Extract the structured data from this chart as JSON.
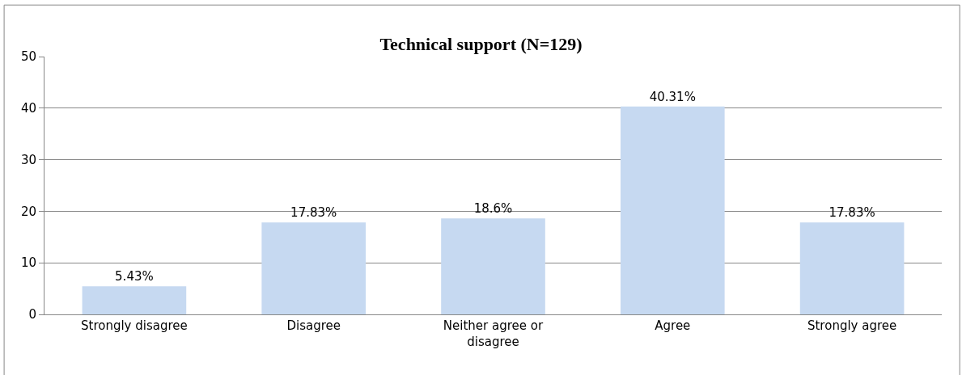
{
  "chart_data": {
    "type": "bar",
    "title": "Technical support (N=129)",
    "categories": [
      "Strongly disagree",
      "Disagree",
      "Neither agree or disagree",
      "Agree",
      "Strongly agree"
    ],
    "values": [
      5.43,
      17.83,
      18.6,
      40.31,
      17.83
    ],
    "value_labels": [
      "5.43%",
      "17.83%",
      "18.6%",
      "40.31%",
      "17.83%"
    ],
    "color": "#c6d9f1",
    "ylim": [
      0,
      50
    ],
    "yticks": [
      0,
      10,
      20,
      30,
      40,
      50
    ],
    "grid": "y"
  }
}
